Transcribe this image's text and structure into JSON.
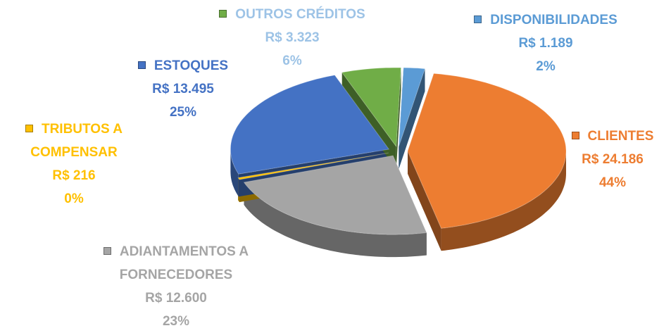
{
  "chart_data": {
    "type": "pie",
    "categories": [
      "DISPONIBILIDADES",
      "CLIENTES",
      "ADIANTAMENTOS A FORNECEDORES",
      "TRIBUTOS A COMPENSAR",
      "ESTOQUES",
      "OUTROS CRÉDITOS"
    ],
    "values": [
      1189,
      24186,
      12600,
      216,
      13495,
      3323
    ],
    "value_labels": [
      "R$ 1.189",
      "R$ 24.186",
      "R$ 12.600",
      "R$ 216",
      "R$ 13.495",
      "R$ 3.323"
    ],
    "share_labels": [
      "2%",
      "44%",
      "23%",
      "0%",
      "25%",
      "6%"
    ],
    "colors": [
      "#5b9bd5",
      "#ed7d31",
      "#a5a5a5",
      "#ffc000",
      "#4472c4",
      "#70ad47"
    ],
    "label_colors": [
      "#5b9bd5",
      "#ed7d31",
      "#a5a5a5",
      "#ffc000",
      "#4472c4",
      "#9dc3e6"
    ]
  }
}
